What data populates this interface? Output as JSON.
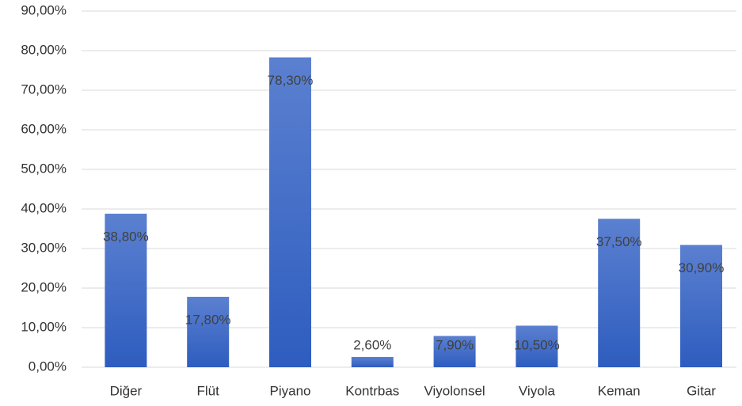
{
  "chart_data": {
    "type": "bar",
    "categories": [
      "Diğer",
      "Flüt",
      "Piyano",
      "Kontrbas",
      "Viyolonsel",
      "Viyola",
      "Keman",
      "Gitar"
    ],
    "values": [
      38.8,
      17.8,
      78.3,
      2.6,
      7.9,
      10.5,
      37.5,
      30.9
    ],
    "value_labels": [
      "38,80%",
      "17,80%",
      "78,30%",
      "2,60%",
      "7,90%",
      "10,50%",
      "37,50%",
      "30,90%"
    ],
    "color": "#4472c4",
    "ylim": [
      0,
      90
    ],
    "yticks": [
      {
        "value": 0,
        "label": "0,00%"
      },
      {
        "value": 10,
        "label": "10,00%"
      },
      {
        "value": 20,
        "label": "20,00%"
      },
      {
        "value": 30,
        "label": "30,00%"
      },
      {
        "value": 40,
        "label": "40,00%"
      },
      {
        "value": 50,
        "label": "50,00%"
      },
      {
        "value": 60,
        "label": "60,00%"
      },
      {
        "value": 70,
        "label": "70,00%"
      },
      {
        "value": 80,
        "label": "80,00%"
      },
      {
        "value": 90,
        "label": "90,00%"
      }
    ],
    "grid": true
  }
}
